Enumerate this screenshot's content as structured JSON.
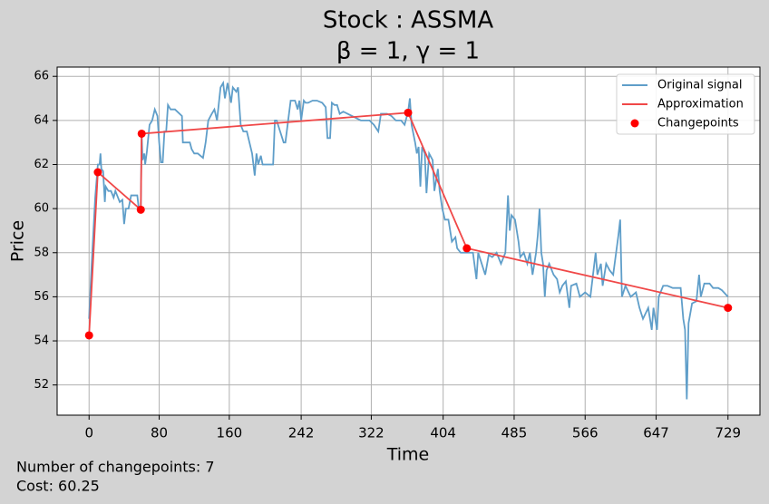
{
  "chart_data": {
    "type": "line",
    "title": "Stock : ASSMA",
    "subtitle": "β = 1, γ = 1",
    "x_label": "Time",
    "y_label": "Price",
    "annotations": [
      "Number of changepoints: 7",
      "Cost: 60.25"
    ],
    "xlim": [
      -36.45,
      765.45
    ],
    "ylim": [
      50.63,
      66.42
    ],
    "xticks": [
      0,
      80,
      160,
      242,
      322,
      404,
      485,
      566,
      647,
      729
    ],
    "yticks": [
      52,
      54,
      56,
      58,
      60,
      62,
      64,
      66
    ],
    "grid": true,
    "legend": "upper right",
    "series": [
      {
        "name": "Original signal",
        "color": "#5f9ec9",
        "style": "line",
        "x": [
          0,
          3,
          5,
          7,
          9,
          10,
          12,
          13,
          14,
          16,
          18,
          19,
          22,
          25,
          28,
          30,
          33,
          35,
          38,
          40,
          42,
          45,
          48,
          52,
          55,
          57,
          59,
          60,
          61,
          63,
          64,
          66,
          69,
          72,
          75,
          78,
          80,
          82,
          84,
          86,
          88,
          90,
          93,
          98,
          106,
          107,
          115,
          117,
          120,
          124,
          130,
          133,
          136,
          140,
          143,
          146,
          150,
          153,
          155,
          158,
          162,
          164,
          166,
          168,
          170,
          173,
          176,
          180,
          183,
          186,
          189,
          191,
          193,
          196,
          198,
          205,
          210,
          212,
          214,
          218,
          222,
          224,
          230,
          235,
          238,
          240,
          242,
          245,
          247,
          250,
          255,
          260,
          266,
          270,
          272,
          275,
          277,
          280,
          283,
          286,
          290,
          300,
          310,
          320,
          325,
          330,
          333,
          340,
          345,
          350,
          356,
          360,
          364,
          366,
          368,
          372,
          374,
          376,
          378,
          380,
          383,
          385,
          388,
          392,
          394,
          398,
          400,
          403,
          406,
          410,
          414,
          418,
          420,
          424,
          430,
          438,
          442,
          444,
          448,
          452,
          456,
          460,
          465,
          470,
          475,
          478,
          480,
          482,
          486,
          490,
          492,
          496,
          500,
          503,
          506,
          510,
          512,
          514,
          516,
          518,
          520,
          522,
          525,
          530,
          534,
          537,
          540,
          544,
          548,
          550,
          556,
          560,
          566,
          572,
          578,
          580,
          584,
          586,
          590,
          594,
          598,
          604,
          606,
          608,
          612,
          618,
          624,
          628,
          632,
          638,
          642,
          644,
          646,
          648,
          650,
          655,
          660,
          666,
          670,
          675,
          678,
          680,
          682,
          684,
          688,
          693,
          696,
          698,
          702,
          708,
          712,
          718,
          722,
          729
        ],
        "values": [
          55.0,
          57.5,
          59.0,
          60.5,
          61.5,
          62.0,
          62.0,
          62.5,
          61.8,
          61.7,
          60.3,
          61.0,
          60.8,
          60.8,
          60.5,
          60.8,
          60.5,
          60.3,
          60.4,
          59.3,
          60.0,
          60.0,
          60.6,
          60.6,
          60.6,
          59.9,
          60.0,
          63.4,
          62.2,
          62.5,
          62.0,
          62.6,
          63.8,
          64.0,
          64.5,
          64.2,
          63.0,
          62.1,
          62.1,
          63.5,
          63.5,
          64.7,
          64.5,
          64.5,
          64.2,
          63.0,
          63.0,
          62.7,
          62.5,
          62.5,
          62.3,
          63.0,
          64.0,
          64.3,
          64.5,
          64.0,
          65.5,
          65.7,
          65.0,
          65.7,
          64.8,
          65.5,
          65.4,
          65.3,
          65.5,
          63.8,
          63.5,
          63.5,
          63.0,
          62.5,
          61.5,
          62.5,
          62.0,
          62.4,
          62.0,
          62.0,
          62.0,
          64.0,
          64.0,
          63.5,
          63.0,
          63.0,
          64.9,
          64.9,
          64.5,
          64.9,
          64.0,
          64.9,
          64.8,
          64.8,
          64.9,
          64.9,
          64.8,
          64.6,
          63.2,
          63.2,
          64.8,
          64.7,
          64.7,
          64.3,
          64.4,
          64.2,
          64.0,
          64.0,
          63.8,
          63.5,
          64.3,
          64.3,
          64.2,
          64.0,
          64.0,
          63.8,
          64.4,
          65.0,
          63.8,
          63.0,
          62.5,
          62.8,
          61.0,
          62.8,
          62.5,
          60.7,
          62.5,
          62.2,
          60.8,
          61.8,
          60.8,
          60.0,
          59.5,
          59.5,
          58.5,
          58.7,
          58.2,
          58.0,
          58.0,
          58.0,
          56.8,
          58.0,
          57.5,
          57.0,
          57.9,
          57.8,
          58.0,
          57.5,
          58.0,
          60.6,
          59.0,
          59.7,
          59.5,
          58.5,
          57.8,
          58.0,
          57.5,
          58.0,
          57.0,
          58.0,
          58.8,
          60.0,
          58.0,
          57.5,
          56.0,
          57.2,
          57.5,
          57.0,
          56.8,
          56.2,
          56.5,
          56.7,
          55.5,
          56.5,
          56.6,
          56.0,
          56.2,
          56.0,
          58.0,
          57.0,
          57.5,
          56.5,
          57.5,
          57.2,
          57.0,
          58.8,
          59.5,
          56.0,
          56.5,
          56.0,
          56.2,
          55.5,
          55.0,
          55.5,
          54.5,
          55.5,
          55.0,
          54.5,
          56.0,
          56.5,
          56.5,
          56.4,
          56.4,
          56.4,
          55.0,
          54.5,
          51.35,
          54.8,
          55.7,
          55.8,
          57.0,
          56.0,
          56.6,
          56.6,
          56.4,
          56.4,
          56.3,
          56.0
        ]
      },
      {
        "name": "Approximation",
        "color": "#f04848",
        "style": "line",
        "x": [
          0,
          10,
          59,
          60,
          364,
          431,
          729
        ],
        "values": [
          54.25,
          61.65,
          59.95,
          63.4,
          64.35,
          58.2,
          55.5
        ]
      },
      {
        "name": "Changepoints",
        "color": "#ff0000",
        "style": "points",
        "x": [
          0,
          10,
          59,
          60,
          364,
          431,
          729
        ],
        "values": [
          54.25,
          61.65,
          59.95,
          63.4,
          64.35,
          58.2,
          55.5
        ]
      }
    ]
  }
}
